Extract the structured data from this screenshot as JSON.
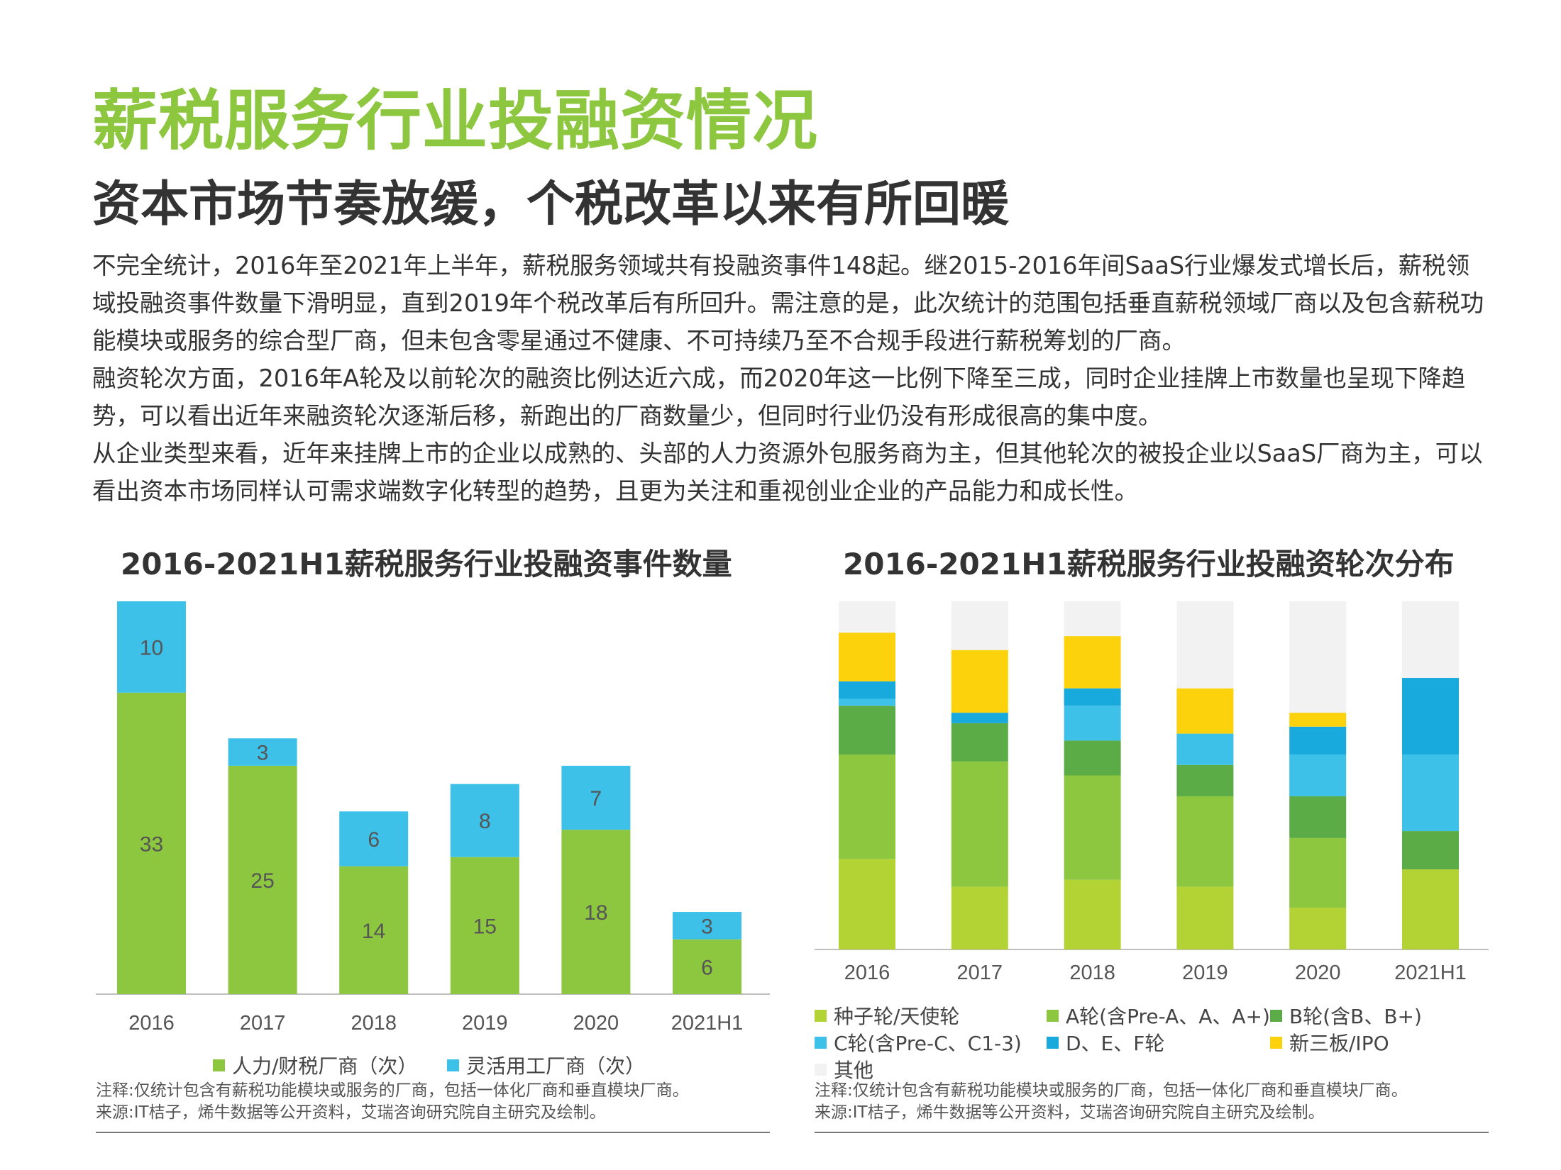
{
  "page": {
    "title": "薪税服务行业投融资情况",
    "subtitle": "资本市场节奏放缓，个税改革以来有所回暖",
    "paragraphs": [
      "不完全统计，2016年至2021年上半年，薪税服务领域共有投融资事件148起。继2015-2016年间SaaS行业爆发式增长后，薪税领域投融资事件数量下滑明显，直到2019年个税改革后有所回升。需注意的是，此次统计的范围包括垂直薪税领域厂商以及包含薪税功能模块或服务的综合型厂商，但未包含零星通过不健康、不可持续乃至不合规手段进行薪税筹划的厂商。",
      "融资轮次方面，2016年A轮及以前轮次的融资比例达近六成，而2020年这一比例下降至三成，同时企业挂牌上市数量也呈现下降趋势，可以看出近年来融资轮次逐渐后移，新跑出的厂商数量少，但同时行业仍没有形成很高的集中度。",
      "从企业类型来看，近年来挂牌上市的企业以成熟的、头部的人力资源外包服务商为主，但其他轮次的被投企业以SaaS厂商为主，可以看出资本市场同样认可需求端数字化转型的趋势，且更为关注和重视创业企业的产品能力和成长性。"
    ]
  },
  "chart_data": [
    {
      "type": "bar",
      "stacked": true,
      "title": "2016-2021H1薪税服务行业投融资事件数量",
      "categories": [
        "2016",
        "2017",
        "2018",
        "2019",
        "2020",
        "2021H1"
      ],
      "series": [
        {
          "name": "人力/财税厂商（次）",
          "color": "#8dc63f",
          "values": [
            33,
            25,
            14,
            15,
            18,
            6
          ]
        },
        {
          "name": "灵活用工厂商（次）",
          "color": "#3ec1e9",
          "values": [
            10,
            3,
            6,
            8,
            7,
            3
          ]
        }
      ],
      "ylim": [
        0,
        43
      ],
      "grid": false,
      "legend_position": "bottom",
      "note": "注释:仅统计包含有薪税功能模块或服务的厂商，包括一体化厂商和垂直模块厂商。",
      "source": "来源:IT桔子，烯牛数据等公开资料，艾瑞咨询研究院自主研究及绘制。"
    },
    {
      "type": "bar",
      "stacked": true,
      "percent": true,
      "title": "2016-2021H1薪税服务行业投融资轮次分布",
      "categories": [
        "2016",
        "2017",
        "2018",
        "2019",
        "2020",
        "2021H1"
      ],
      "series": [
        {
          "name": "种子轮/天使轮",
          "color": "#b3d234",
          "values": [
            26,
            18,
            20,
            18,
            12,
            23
          ]
        },
        {
          "name": "A轮(含Pre-A、A、A+)",
          "color": "#8dc63f",
          "values": [
            30,
            36,
            30,
            26,
            20,
            0
          ]
        },
        {
          "name": "B轮(含B、B+)",
          "color": "#5bab46",
          "values": [
            14,
            11,
            10,
            9,
            12,
            11
          ]
        },
        {
          "name": "C轮(含Pre-C、C1-3)",
          "color": "#3ec1e9",
          "values": [
            2,
            0,
            10,
            9,
            12,
            22
          ]
        },
        {
          "name": "D、E、F轮",
          "color": "#18a9dd",
          "values": [
            5,
            3,
            5,
            0,
            8,
            22
          ]
        },
        {
          "name": "新三板/IPO",
          "color": "#fcd20d",
          "values": [
            14,
            18,
            15,
            13,
            4,
            0
          ]
        },
        {
          "name": "其他",
          "color": "#f2f2f2",
          "values": [
            9,
            14,
            10,
            25,
            32,
            22
          ]
        }
      ],
      "ylim": [
        0,
        100
      ],
      "grid": false,
      "legend_position": "bottom",
      "note": "注释:仅统计包含有薪税功能模块或服务的厂商，包括一体化厂商和垂直模块厂商。",
      "source": "来源:IT桔子，烯牛数据等公开资料，艾瑞咨询研究院自主研究及绘制。"
    }
  ]
}
